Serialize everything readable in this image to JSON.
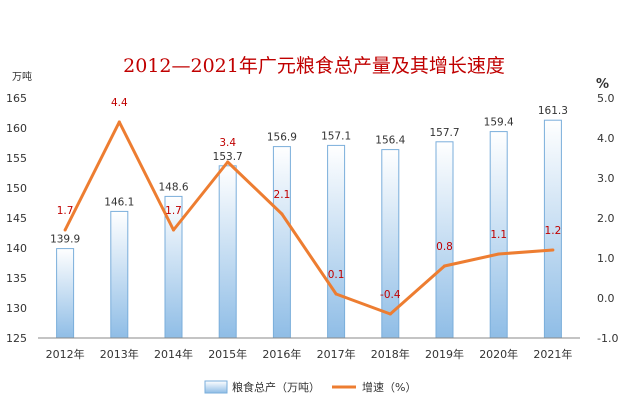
{
  "chart_data": {
    "type": "bar",
    "title": "2012—2021年广元粮食总产量及其增长速度",
    "categories": [
      "2012年",
      "2013年",
      "2014年",
      "2015年",
      "2016年",
      "2017年",
      "2018年",
      "2019年",
      "2020年",
      "2021年"
    ],
    "series": [
      {
        "name": "粮食总产（万吨）",
        "type": "bar",
        "axis": "left",
        "values": [
          139.9,
          146.1,
          148.6,
          153.7,
          156.9,
          157.1,
          156.4,
          157.7,
          159.4,
          161.3
        ],
        "labels": [
          "139.9",
          "146.1",
          "148.6",
          "153.7",
          "156.9",
          "157.1",
          "156.4",
          "157.7",
          "159.4",
          "161.3"
        ]
      },
      {
        "name": "增速（%）",
        "type": "line",
        "axis": "right",
        "values": [
          1.7,
          4.4,
          1.7,
          3.4,
          2.1,
          0.1,
          -0.4,
          0.8,
          1.1,
          1.2
        ],
        "labels": [
          "1.7",
          "4.4",
          "1.7",
          "3.4",
          "2.1",
          "0.1",
          "-0.4",
          "0.8",
          "1.1",
          "1.2"
        ]
      }
    ],
    "ylabel": "万吨",
    "y2label": "%",
    "ylim": [
      125,
      165
    ],
    "yticks": [
      "125",
      "130",
      "135",
      "140",
      "145",
      "150",
      "155",
      "160",
      "165"
    ],
    "y2lim": [
      -1.0,
      5.0
    ],
    "y2ticks": [
      "-1.0",
      "0.0",
      "1.0",
      "2.0",
      "3.0",
      "4.0",
      "5.0"
    ],
    "legend_position": "bottom",
    "grid": false,
    "colors": {
      "bar_fill_top": "#ffffff",
      "bar_fill_bottom": "#8fbde6",
      "bar_stroke": "#7aaedb",
      "line": "#ed7d31",
      "line_label": "#c00000",
      "title": "#c00000",
      "axis": "#888888"
    }
  }
}
